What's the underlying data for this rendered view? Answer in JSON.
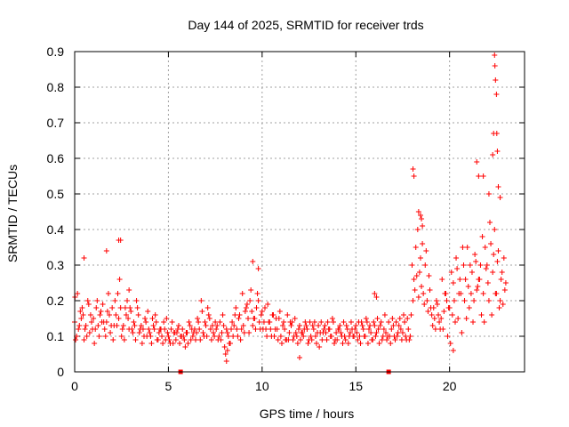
{
  "chart_data": {
    "type": "scatter",
    "title": "Day 144 of 2025, SRMTID for receiver trds",
    "xlabel": "GPS time / hours",
    "ylabel": "SRMTID / TECUs",
    "xlim": [
      0,
      24
    ],
    "ylim": [
      0,
      0.9
    ],
    "x_ticks": [
      "0",
      "5",
      "10",
      "15",
      "20"
    ],
    "y_ticks": [
      "0",
      "0.1",
      "0.2",
      "0.3",
      "0.4",
      "0.5",
      "0.6",
      "0.7",
      "0.8",
      "0.9"
    ],
    "grid": true,
    "marker": "+",
    "series_color": "#ff0000",
    "gap_markers_x": [
      5.65,
      16.75
    ],
    "series": [
      {
        "name": "SRMTID",
        "x": [
          0.0,
          0.2,
          0.4,
          0.6,
          0.8,
          1.0,
          1.2,
          1.4,
          1.6,
          1.8,
          2.0,
          2.2,
          2.4,
          2.6,
          2.8,
          3.0,
          3.2,
          3.4,
          3.6,
          3.8,
          4.0,
          4.2,
          4.4,
          4.6,
          4.8,
          5.0,
          5.2,
          5.4,
          5.6,
          5.8,
          6.0,
          6.2,
          6.4,
          6.6,
          6.8,
          7.0,
          7.2,
          7.4,
          7.6,
          7.8,
          8.0,
          8.2,
          8.4,
          8.6,
          8.8,
          9.0,
          9.2,
          9.4,
          9.6,
          9.8,
          10.0,
          10.2,
          10.4,
          10.6,
          10.8,
          11.0,
          11.2,
          11.4,
          11.6,
          11.8,
          12.0,
          12.2,
          12.4,
          12.6,
          12.8,
          13.0,
          13.2,
          13.4,
          13.6,
          13.8,
          14.0,
          14.2,
          14.4,
          14.6,
          14.8,
          15.0,
          15.2,
          15.4,
          15.6,
          15.8,
          16.0,
          16.2,
          16.4,
          16.6,
          16.8,
          17.0,
          17.2,
          17.4,
          17.6,
          17.8,
          18.0,
          18.2,
          18.4,
          18.6,
          18.8,
          19.0,
          19.2,
          19.4,
          19.6,
          19.8,
          20.0,
          20.2,
          20.4,
          20.6,
          20.8,
          21.0,
          21.2,
          21.4,
          21.6,
          21.8,
          22.0,
          22.2,
          22.4,
          22.6,
          22.8,
          23.0,
          0.1,
          0.3,
          0.5,
          0.7,
          0.9,
          1.1,
          1.3,
          1.5,
          1.7,
          1.9,
          2.1,
          2.3,
          2.5,
          2.7,
          2.9,
          3.1,
          3.3,
          3.5,
          3.7,
          3.9,
          4.1,
          4.3,
          4.5,
          4.7,
          4.9,
          5.1,
          5.3,
          5.5,
          5.7,
          5.9,
          6.1,
          6.3,
          6.5,
          6.7,
          6.9,
          7.1,
          7.3,
          7.5,
          7.7,
          7.9,
          8.1,
          8.3,
          8.5,
          8.7,
          8.9,
          9.1,
          9.3,
          9.5,
          9.7,
          9.9,
          10.1,
          10.3,
          10.5,
          10.7,
          10.9,
          11.1,
          11.3,
          11.5,
          11.7,
          11.9,
          12.1,
          12.3,
          12.5,
          12.7,
          12.9,
          13.1,
          13.3,
          13.5,
          13.7,
          13.9,
          14.1,
          14.3,
          14.5,
          14.7,
          14.9,
          15.1,
          15.3,
          15.5,
          15.7,
          15.9,
          16.1,
          16.3,
          16.5,
          16.7,
          16.9,
          17.1,
          17.3,
          17.5,
          17.7,
          17.9,
          18.1,
          18.3,
          18.5,
          18.7,
          18.9,
          19.1,
          19.3,
          19.5,
          19.7,
          19.9,
          20.1,
          20.3,
          20.5,
          20.7,
          20.9,
          21.1,
          21.3,
          21.5,
          21.7,
          21.9,
          22.1,
          22.3,
          22.5,
          22.7,
          22.9,
          0.05,
          0.25,
          0.45,
          0.65,
          0.85,
          1.05,
          1.25,
          1.45,
          1.65,
          1.85,
          2.05,
          2.25,
          2.45,
          2.65,
          2.85,
          3.05,
          3.25,
          3.45,
          3.65,
          3.85,
          4.05,
          4.25,
          4.45,
          4.65,
          4.85,
          5.05,
          5.25,
          5.45,
          5.65,
          5.85,
          6.05,
          6.25,
          6.45,
          6.65,
          6.85,
          7.05,
          7.25,
          7.45,
          7.65,
          7.85,
          8.05,
          8.25,
          8.45,
          8.65,
          8.85,
          9.05,
          9.25,
          9.45,
          9.65,
          9.85,
          10.05,
          10.25,
          10.45,
          10.65,
          10.85,
          11.05,
          11.25,
          11.45,
          11.65,
          11.85,
          12.05,
          12.25,
          12.45,
          12.65,
          12.85,
          13.05,
          13.25,
          13.45,
          13.65,
          13.85,
          14.05,
          14.25,
          14.45,
          14.65,
          14.85,
          15.05,
          15.25,
          15.45,
          15.65,
          15.85,
          16.05,
          16.25,
          16.45,
          16.65,
          16.85,
          17.05,
          17.25,
          17.45,
          17.65,
          17.85,
          18.05,
          18.25,
          18.45,
          18.65,
          18.85,
          19.05,
          19.25,
          19.45,
          19.65,
          19.85,
          20.05,
          20.25,
          20.45,
          20.65,
          20.85,
          21.05,
          21.25,
          21.45,
          21.65,
          21.85,
          22.05,
          22.25,
          22.45,
          22.65,
          22.85,
          0.15,
          0.35,
          0.55,
          0.75,
          0.95,
          1.15,
          1.35,
          1.55,
          1.75,
          1.95,
          2.15,
          2.35,
          2.55,
          2.75,
          2.95,
          3.15,
          3.35,
          3.55,
          3.75,
          3.95,
          4.15,
          4.35,
          4.55,
          4.75,
          4.95,
          5.15,
          5.35,
          5.55,
          5.75,
          5.95,
          6.15,
          6.35,
          6.55,
          6.75,
          6.95,
          7.15,
          7.35,
          7.55,
          7.75,
          7.95,
          8.15,
          8.35,
          8.55,
          8.75,
          8.95,
          9.15,
          9.35,
          9.55,
          9.75,
          9.95,
          10.15,
          10.35,
          10.55,
          10.75,
          10.95,
          11.15,
          11.35,
          11.55,
          11.75,
          11.95,
          12.15,
          12.35,
          12.55,
          12.75,
          12.95,
          13.15,
          13.35,
          13.55,
          13.75,
          13.95,
          14.15,
          14.35,
          14.55,
          14.75,
          14.95,
          15.15,
          15.35,
          15.55,
          15.75,
          15.95,
          16.15,
          16.35,
          16.55,
          16.75,
          16.95,
          17.15,
          17.35,
          17.55,
          17.75,
          17.95,
          18.15,
          18.35,
          18.55,
          18.75,
          18.95,
          19.15,
          19.35,
          19.55,
          19.75,
          19.95,
          20.15,
          20.35,
          20.55,
          20.75,
          20.95,
          21.15,
          21.35,
          21.55,
          21.75,
          21.95,
          22.15,
          22.35,
          22.55,
          22.75,
          22.95,
          0.02,
          0.5,
          1.7,
          2.35,
          2.45,
          2.9,
          18.05,
          18.1,
          18.35,
          18.45,
          18.5,
          18.55,
          21.45,
          21.55,
          21.8,
          22.1,
          22.3,
          22.35,
          22.4,
          22.42,
          22.45,
          22.5,
          22.52,
          22.55,
          22.6,
          22.7,
          9.5,
          9.8,
          16.0,
          16.1,
          8.1,
          8.15,
          12.0,
          20.2
        ],
        "y": [
          0.14,
          0.12,
          0.18,
          0.13,
          0.11,
          0.15,
          0.2,
          0.17,
          0.12,
          0.22,
          0.18,
          0.16,
          0.26,
          0.13,
          0.2,
          0.17,
          0.13,
          0.16,
          0.08,
          0.14,
          0.11,
          0.13,
          0.09,
          0.12,
          0.12,
          0.1,
          0.14,
          0.09,
          0.08,
          0.1,
          0.11,
          0.09,
          0.12,
          0.14,
          0.17,
          0.13,
          0.15,
          0.11,
          0.13,
          0.09,
          0.07,
          0.1,
          0.14,
          0.18,
          0.16,
          0.13,
          0.19,
          0.23,
          0.15,
          0.2,
          0.17,
          0.12,
          0.14,
          0.16,
          0.12,
          0.1,
          0.12,
          0.09,
          0.14,
          0.11,
          0.13,
          0.1,
          0.12,
          0.1,
          0.14,
          0.13,
          0.09,
          0.11,
          0.12,
          0.14,
          0.09,
          0.11,
          0.1,
          0.08,
          0.12,
          0.13,
          0.1,
          0.12,
          0.14,
          0.11,
          0.13,
          0.12,
          0.09,
          0.11,
          0.1,
          0.13,
          0.1,
          0.12,
          0.14,
          0.12,
          0.3,
          0.35,
          0.28,
          0.22,
          0.2,
          0.18,
          0.15,
          0.16,
          0.26,
          0.22,
          0.18,
          0.25,
          0.29,
          0.22,
          0.2,
          0.24,
          0.28,
          0.31,
          0.26,
          0.22,
          0.3,
          0.36,
          0.4,
          0.34,
          0.28,
          0.25,
          0.1,
          0.17,
          0.09,
          0.2,
          0.14,
          0.12,
          0.1,
          0.19,
          0.14,
          0.11,
          0.13,
          0.22,
          0.1,
          0.18,
          0.12,
          0.11,
          0.2,
          0.12,
          0.1,
          0.17,
          0.08,
          0.16,
          0.11,
          0.08,
          0.15,
          0.08,
          0.11,
          0.12,
          0.1,
          0.07,
          0.14,
          0.1,
          0.11,
          0.09,
          0.1,
          0.18,
          0.09,
          0.14,
          0.1,
          0.16,
          0.12,
          0.08,
          0.13,
          0.1,
          0.12,
          0.17,
          0.11,
          0.13,
          0.18,
          0.12,
          0.14,
          0.19,
          0.1,
          0.12,
          0.15,
          0.13,
          0.09,
          0.14,
          0.1,
          0.08,
          0.11,
          0.14,
          0.09,
          0.13,
          0.08,
          0.11,
          0.12,
          0.14,
          0.1,
          0.09,
          0.12,
          0.08,
          0.13,
          0.11,
          0.1,
          0.09,
          0.14,
          0.1,
          0.12,
          0.09,
          0.11,
          0.13,
          0.12,
          0.1,
          0.12,
          0.09,
          0.13,
          0.11,
          0.09,
          0.1,
          0.26,
          0.4,
          0.24,
          0.3,
          0.27,
          0.13,
          0.2,
          0.12,
          0.17,
          0.1,
          0.28,
          0.14,
          0.22,
          0.35,
          0.15,
          0.3,
          0.2,
          0.24,
          0.16,
          0.35,
          0.2,
          0.28,
          0.22,
          0.2,
          0.32,
          0.09,
          0.13,
          0.16,
          0.1,
          0.16,
          0.08,
          0.13,
          0.14,
          0.1,
          0.16,
          0.09,
          0.13,
          0.18,
          0.09,
          0.15,
          0.12,
          0.09,
          0.11,
          0.12,
          0.1,
          0.1,
          0.12,
          0.09,
          0.1,
          0.09,
          0.09,
          0.08,
          0.11,
          0.1,
          0.09,
          0.08,
          0.12,
          0.09,
          0.12,
          0.11,
          0.1,
          0.12,
          0.1,
          0.09,
          0.11,
          0.05,
          0.08,
          0.1,
          0.12,
          0.09,
          0.11,
          0.15,
          0.17,
          0.12,
          0.14,
          0.12,
          0.1,
          0.12,
          0.1,
          0.09,
          0.08,
          0.09,
          0.11,
          0.09,
          0.1,
          0.09,
          0.12,
          0.08,
          0.09,
          0.1,
          0.07,
          0.11,
          0.09,
          0.1,
          0.08,
          0.12,
          0.1,
          0.09,
          0.1,
          0.1,
          0.11,
          0.08,
          0.1,
          0.08,
          0.09,
          0.1,
          0.08,
          0.1,
          0.09,
          0.08,
          0.1,
          0.11,
          0.09,
          0.1,
          0.09,
          0.2,
          0.27,
          0.32,
          0.19,
          0.17,
          0.16,
          0.12,
          0.14,
          0.12,
          0.2,
          0.08,
          0.2,
          0.15,
          0.11,
          0.26,
          0.18,
          0.14,
          0.23,
          0.3,
          0.14,
          0.25,
          0.16,
          0.22,
          0.18,
          0.19,
          0.22,
          0.15,
          0.12,
          0.19,
          0.12,
          0.18,
          0.16,
          0.14,
          0.17,
          0.13,
          0.2,
          0.15,
          0.12,
          0.16,
          0.18,
          0.14,
          0.18,
          0.13,
          0.15,
          0.12,
          0.15,
          0.14,
          0.12,
          0.14,
          0.11,
          0.12,
          0.11,
          0.13,
          0.12,
          0.11,
          0.13,
          0.11,
          0.15,
          0.2,
          0.14,
          0.16,
          0.13,
          0.12,
          0.14,
          0.13,
          0.11,
          0.12,
          0.16,
          0.15,
          0.22,
          0.18,
          0.2,
          0.15,
          0.22,
          0.16,
          0.18,
          0.14,
          0.16,
          0.15,
          0.17,
          0.14,
          0.16,
          0.13,
          0.15,
          0.12,
          0.11,
          0.13,
          0.14,
          0.12,
          0.11,
          0.14,
          0.13,
          0.12,
          0.15,
          0.11,
          0.13,
          0.14,
          0.12,
          0.14,
          0.12,
          0.14,
          0.13,
          0.15,
          0.13,
          0.14,
          0.15,
          0.14,
          0.16,
          0.14,
          0.15,
          0.14,
          0.15,
          0.16,
          0.15,
          0.16,
          0.23,
          0.21,
          0.36,
          0.34,
          0.23,
          0.18,
          0.19,
          0.15,
          0.22,
          0.18,
          0.16,
          0.32,
          0.26,
          0.3,
          0.35,
          0.22,
          0.33,
          0.26,
          0.38,
          0.29,
          0.42,
          0.33,
          0.31,
          0.26,
          0.23,
          0.21,
          0.32,
          0.34,
          0.37,
          0.37,
          0.23,
          0.57,
          0.55,
          0.45,
          0.44,
          0.43,
          0.41,
          0.59,
          0.55,
          0.55,
          0.5,
          0.61,
          0.67,
          0.89,
          0.86,
          0.82,
          0.78,
          0.67,
          0.62,
          0.52,
          0.49,
          0.31,
          0.29,
          0.22,
          0.21,
          0.03,
          0.06,
          0.04,
          0.06
        ]
      }
    ]
  }
}
